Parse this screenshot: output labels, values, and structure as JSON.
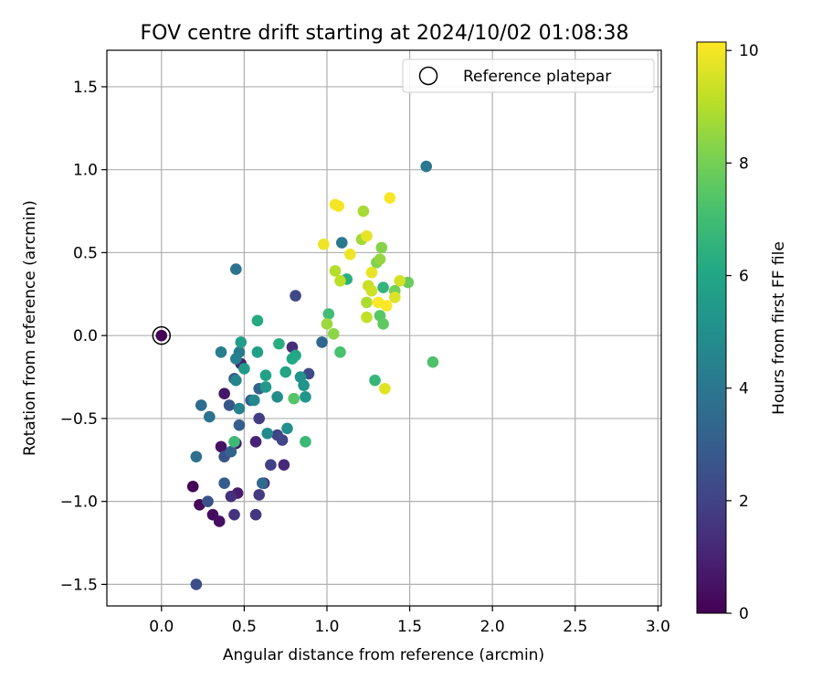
{
  "chart_data": {
    "type": "scatter",
    "title": "FOV centre drift starting at 2024/10/02 01:08:38",
    "xlabel": "Angular distance from reference (arcmin)",
    "ylabel": "Rotation from reference (arcmin)",
    "xlim": [
      -0.33,
      3.02
    ],
    "ylim": [
      -1.63,
      1.72
    ],
    "xticks": [
      0.0,
      0.5,
      1.0,
      1.5,
      2.0,
      2.5,
      3.0
    ],
    "xtick_labels": [
      "0.0",
      "0.5",
      "1.0",
      "1.5",
      "2.0",
      "2.5",
      "3.0"
    ],
    "yticks": [
      -1.5,
      -1.0,
      -0.5,
      0.0,
      0.5,
      1.0,
      1.5
    ],
    "ytick_labels": [
      "−1.5",
      "−1.0",
      "−0.5",
      "0.0",
      "0.5",
      "1.0",
      "1.5"
    ],
    "grid": true,
    "legend": {
      "position": "top-right",
      "label": "Reference platepar"
    },
    "reference_point": {
      "x": 0.0,
      "y": 0.0,
      "hours": 0.0
    },
    "colorbar": {
      "label": "Hours from first FF file",
      "min": 0,
      "max": 10.15,
      "ticks": [
        0,
        2,
        4,
        6,
        8,
        10
      ],
      "tick_labels": [
        "0",
        "2",
        "4",
        "6",
        "8",
        "10"
      ],
      "colormap": "viridis"
    },
    "points": [
      {
        "x": 0.0,
        "y": 0.0,
        "h": 0.05
      },
      {
        "x": 0.19,
        "y": -0.91,
        "h": 0.1
      },
      {
        "x": 0.23,
        "y": -1.02,
        "h": 0.2
      },
      {
        "x": 0.31,
        "y": -1.08,
        "h": 0.3
      },
      {
        "x": 0.35,
        "y": -1.12,
        "h": 0.4
      },
      {
        "x": 0.36,
        "y": -0.67,
        "h": 0.5
      },
      {
        "x": 0.38,
        "y": -0.35,
        "h": 0.6
      },
      {
        "x": 0.45,
        "y": -0.65,
        "h": 0.7
      },
      {
        "x": 0.46,
        "y": -0.95,
        "h": 0.8
      },
      {
        "x": 0.48,
        "y": -0.17,
        "h": 0.9
      },
      {
        "x": 0.57,
        "y": -0.64,
        "h": 1.0
      },
      {
        "x": 0.62,
        "y": -0.89,
        "h": 1.1
      },
      {
        "x": 0.74,
        "y": -0.78,
        "h": 1.2
      },
      {
        "x": 0.79,
        "y": -0.07,
        "h": 1.3
      },
      {
        "x": 0.42,
        "y": -0.97,
        "h": 1.4
      },
      {
        "x": 0.44,
        "y": -1.08,
        "h": 1.5
      },
      {
        "x": 0.57,
        "y": -1.08,
        "h": 1.6
      },
      {
        "x": 0.59,
        "y": -0.96,
        "h": 1.7
      },
      {
        "x": 0.59,
        "y": -0.5,
        "h": 1.8
      },
      {
        "x": 0.66,
        "y": -0.78,
        "h": 1.9
      },
      {
        "x": 0.7,
        "y": -0.6,
        "h": 2.0
      },
      {
        "x": 0.73,
        "y": -0.63,
        "h": 2.1
      },
      {
        "x": 0.81,
        "y": 0.24,
        "h": 2.2
      },
      {
        "x": 0.89,
        "y": -0.23,
        "h": 2.3
      },
      {
        "x": 0.21,
        "y": -1.5,
        "h": 2.4
      },
      {
        "x": 0.28,
        "y": -1.0,
        "h": 2.5
      },
      {
        "x": 0.38,
        "y": -0.73,
        "h": 2.6
      },
      {
        "x": 0.41,
        "y": -0.42,
        "h": 2.7
      },
      {
        "x": 0.44,
        "y": -0.26,
        "h": 2.8
      },
      {
        "x": 0.38,
        "y": -0.89,
        "h": 2.9
      },
      {
        "x": 0.47,
        "y": -0.54,
        "h": 3.0
      },
      {
        "x": 0.54,
        "y": -0.39,
        "h": 3.1
      },
      {
        "x": 0.42,
        "y": -0.7,
        "h": 3.2
      },
      {
        "x": 0.59,
        "y": -0.32,
        "h": 3.3
      },
      {
        "x": 0.97,
        "y": -0.04,
        "h": 3.4
      },
      {
        "x": 0.61,
        "y": -0.89,
        "h": 3.5
      },
      {
        "x": 0.24,
        "y": -0.42,
        "h": 3.6
      },
      {
        "x": 0.21,
        "y": -0.73,
        "h": 3.7
      },
      {
        "x": 0.29,
        "y": -0.49,
        "h": 3.8
      },
      {
        "x": 0.45,
        "y": 0.4,
        "h": 3.9
      },
      {
        "x": 1.09,
        "y": 0.56,
        "h": 4.0
      },
      {
        "x": 1.6,
        "y": 1.02,
        "h": 4.1
      },
      {
        "x": 0.47,
        "y": -0.1,
        "h": 4.2
      },
      {
        "x": 0.36,
        "y": -0.1,
        "h": 4.3
      },
      {
        "x": 0.45,
        "y": -0.14,
        "h": 4.4
      },
      {
        "x": 0.47,
        "y": -0.44,
        "h": 4.5
      },
      {
        "x": 0.45,
        "y": -0.27,
        "h": 4.6
      },
      {
        "x": 0.56,
        "y": -0.39,
        "h": 4.7
      },
      {
        "x": 0.64,
        "y": -0.59,
        "h": 4.8
      },
      {
        "x": 0.7,
        "y": -0.37,
        "h": 4.9
      },
      {
        "x": 0.76,
        "y": -0.56,
        "h": 5.0
      },
      {
        "x": 0.84,
        "y": -0.25,
        "h": 5.1
      },
      {
        "x": 0.86,
        "y": -0.3,
        "h": 5.2
      },
      {
        "x": 0.87,
        "y": -0.37,
        "h": 5.3
      },
      {
        "x": 0.63,
        "y": -0.31,
        "h": 5.4
      },
      {
        "x": 0.5,
        "y": -0.2,
        "h": 5.5
      },
      {
        "x": 0.48,
        "y": -0.04,
        "h": 5.6
      },
      {
        "x": 0.58,
        "y": -0.1,
        "h": 5.7
      },
      {
        "x": 0.63,
        "y": -0.24,
        "h": 5.8
      },
      {
        "x": 0.75,
        "y": -0.22,
        "h": 5.9
      },
      {
        "x": 0.81,
        "y": -0.12,
        "h": 6.0
      },
      {
        "x": 0.79,
        "y": -0.14,
        "h": 6.1
      },
      {
        "x": 0.58,
        "y": 0.09,
        "h": 6.2
      },
      {
        "x": 0.71,
        "y": -0.05,
        "h": 6.3
      },
      {
        "x": 1.12,
        "y": 0.34,
        "h": 6.4
      },
      {
        "x": 1.34,
        "y": 0.29,
        "h": 6.6
      },
      {
        "x": 1.29,
        "y": -0.27,
        "h": 6.7
      },
      {
        "x": 0.87,
        "y": -0.64,
        "h": 6.8
      },
      {
        "x": 0.44,
        "y": -0.64,
        "h": 6.9
      },
      {
        "x": 1.01,
        "y": 0.13,
        "h": 7.0
      },
      {
        "x": 1.08,
        "y": -0.1,
        "h": 7.2
      },
      {
        "x": 1.64,
        "y": -0.16,
        "h": 7.3
      },
      {
        "x": 0.8,
        "y": -0.38,
        "h": 7.4
      },
      {
        "x": 1.32,
        "y": 0.12,
        "h": 7.5
      },
      {
        "x": 1.34,
        "y": 0.07,
        "h": 7.6
      },
      {
        "x": 1.49,
        "y": 0.32,
        "h": 7.8
      },
      {
        "x": 1.41,
        "y": 0.27,
        "h": 8.0
      },
      {
        "x": 1.3,
        "y": 0.44,
        "h": 8.2
      },
      {
        "x": 1.33,
        "y": 0.53,
        "h": 8.3
      },
      {
        "x": 1.04,
        "y": 0.01,
        "h": 8.4
      },
      {
        "x": 1.32,
        "y": 0.46,
        "h": 8.5
      },
      {
        "x": 1.0,
        "y": 0.07,
        "h": 8.6
      },
      {
        "x": 1.21,
        "y": 0.58,
        "h": 8.7
      },
      {
        "x": 1.22,
        "y": 0.75,
        "h": 8.8
      },
      {
        "x": 1.24,
        "y": 0.2,
        "h": 8.9
      },
      {
        "x": 1.05,
        "y": 0.39,
        "h": 9.0
      },
      {
        "x": 1.08,
        "y": 0.33,
        "h": 9.1
      },
      {
        "x": 1.24,
        "y": 0.11,
        "h": 9.2
      },
      {
        "x": 1.25,
        "y": 0.3,
        "h": 9.3
      },
      {
        "x": 1.27,
        "y": 0.27,
        "h": 9.4
      },
      {
        "x": 1.44,
        "y": 0.33,
        "h": 9.5
      },
      {
        "x": 1.41,
        "y": 0.23,
        "h": 9.6
      },
      {
        "x": 1.35,
        "y": -0.32,
        "h": 9.7
      },
      {
        "x": 1.27,
        "y": 0.38,
        "h": 9.8
      },
      {
        "x": 1.24,
        "y": 0.6,
        "h": 9.8
      },
      {
        "x": 1.14,
        "y": 0.49,
        "h": 9.9
      },
      {
        "x": 0.98,
        "y": 0.55,
        "h": 9.9
      },
      {
        "x": 1.05,
        "y": 0.79,
        "h": 10.0
      },
      {
        "x": 1.07,
        "y": 0.78,
        "h": 10.0
      },
      {
        "x": 1.38,
        "y": 0.83,
        "h": 10.05
      },
      {
        "x": 1.31,
        "y": 0.2,
        "h": 10.1
      },
      {
        "x": 1.36,
        "y": 0.18,
        "h": 10.1
      }
    ]
  }
}
